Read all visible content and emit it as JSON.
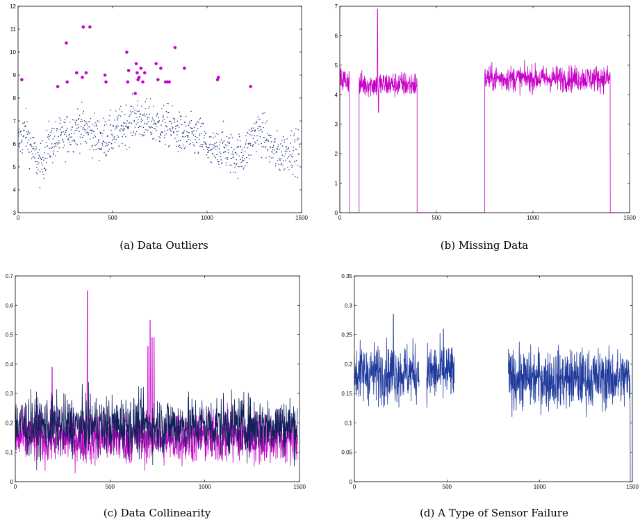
{
  "colors": {
    "magenta": "#c800c8",
    "navy": "#1a2a80",
    "dark_navy": "#12205a",
    "blue": "#1f3a9c"
  },
  "chart_data": [
    {
      "type": "scatter",
      "caption": "(a)  Data Outliers",
      "xlim": [
        0,
        1500
      ],
      "ylim": [
        3,
        12
      ],
      "xticks": [
        0,
        500,
        1000,
        1500
      ],
      "yticks": [
        3,
        4,
        5,
        6,
        7,
        8,
        9,
        10,
        11,
        12
      ],
      "xtick_labels": [
        "0",
        "500",
        "1000",
        "1500"
      ],
      "ytick_labels": [
        "3",
        "4",
        "5",
        "6",
        "7",
        "8",
        "9",
        "10",
        "11",
        "12"
      ],
      "normal_trend": {
        "x": [
          0,
          40,
          80,
          120,
          160,
          200,
          260,
          320,
          380,
          440,
          500,
          560,
          620,
          680,
          740,
          800,
          860,
          920,
          980,
          1020,
          1080,
          1140,
          1200,
          1260,
          1300,
          1340,
          1380,
          1440,
          1500
        ],
        "y": [
          6.0,
          6.6,
          5.6,
          5.0,
          6.0,
          6.1,
          6.4,
          6.8,
          6.5,
          6.2,
          6.4,
          6.8,
          7.1,
          7.0,
          6.8,
          6.8,
          6.4,
          6.3,
          6.2,
          5.6,
          5.9,
          5.5,
          5.6,
          6.6,
          6.4,
          5.8,
          5.5,
          5.8,
          5.6
        ]
      },
      "normal_spread": 0.45,
      "outliers": {
        "x": [
          20,
          210,
          255,
          260,
          310,
          340,
          345,
          360,
          380,
          460,
          465,
          575,
          580,
          585,
          620,
          625,
          630,
          635,
          640,
          650,
          660,
          670,
          730,
          740,
          755,
          780,
          790,
          800,
          830,
          880,
          1055,
          1060,
          1230
        ],
        "y": [
          8.8,
          8.5,
          10.4,
          8.7,
          9.1,
          8.9,
          11.1,
          9.1,
          11.1,
          9.0,
          8.7,
          10.0,
          8.7,
          9.2,
          8.2,
          9.5,
          9.1,
          8.8,
          8.9,
          9.3,
          8.7,
          9.1,
          9.5,
          8.8,
          9.3,
          8.7,
          8.7,
          8.7,
          10.2,
          9.3,
          8.8,
          8.9,
          8.5
        ]
      }
    },
    {
      "type": "line",
      "caption": "(b)  Missing Data",
      "xlim": [
        0,
        1500
      ],
      "ylim": [
        0,
        7
      ],
      "xticks": [
        0,
        500,
        1000,
        1500
      ],
      "yticks": [
        0,
        1,
        2,
        3,
        4,
        5,
        6,
        7
      ],
      "xtick_labels": [
        "0",
        "500",
        "1000",
        "1500"
      ],
      "ytick_labels": [
        "0",
        "1",
        "2",
        "3",
        "4",
        "5",
        "6",
        "7"
      ],
      "segments": [
        {
          "x": [
            0,
            50
          ],
          "mean": 4.5
        },
        {
          "x": [
            100,
            400
          ],
          "mean": 4.35
        },
        {
          "x": [
            750,
            1400
          ],
          "mean": 4.55
        }
      ],
      "noise": 0.22,
      "spikes": [
        {
          "x": 195,
          "y": 6.9
        },
        {
          "x": 200,
          "y": 3.4
        }
      ],
      "missing_value": 0
    },
    {
      "type": "line",
      "caption": "(c)  Data Collinearity",
      "xlim": [
        0,
        1500
      ],
      "ylim": [
        0,
        0.7
      ],
      "xticks": [
        0,
        500,
        1000,
        1500
      ],
      "yticks": [
        0,
        0.1,
        0.2,
        0.3,
        0.4,
        0.5,
        0.6,
        0.7
      ],
      "xtick_labels": [
        "0",
        "500",
        "1000",
        "1500"
      ],
      "ytick_labels": [
        "0",
        "0.1",
        "0.2",
        "0.3",
        "0.4",
        "0.5",
        "0.6",
        "0.7"
      ],
      "series_style": [
        {
          "color": "magenta",
          "mean": 0.15,
          "noise": 0.045
        },
        {
          "color": "dark_navy",
          "mean": 0.19,
          "noise": 0.05
        }
      ],
      "spikes": [
        {
          "x": 195,
          "y": 0.39
        },
        {
          "x": 380,
          "y": 0.65
        },
        {
          "x": 700,
          "y": 0.46
        },
        {
          "x": 712,
          "y": 0.55
        },
        {
          "x": 722,
          "y": 0.49
        },
        {
          "x": 733,
          "y": 0.49
        }
      ]
    },
    {
      "type": "line",
      "caption": "(d)  A Type of Sensor Failure",
      "xlim": [
        0,
        1500
      ],
      "ylim": [
        0,
        0.35
      ],
      "xticks": [
        0,
        500,
        1000,
        1500
      ],
      "yticks": [
        0,
        0.05,
        0.1,
        0.15,
        0.2,
        0.25,
        0.3,
        0.35
      ],
      "xtick_labels": [
        "0",
        "500",
        "1000",
        "1500"
      ],
      "ytick_labels": [
        "0",
        "0.05",
        "0.1",
        "0.15",
        "0.2",
        "0.25",
        "0.3",
        "0.35"
      ],
      "segments": [
        {
          "x": [
            0,
            350
          ],
          "mean": 0.185
        },
        {
          "x": [
            390,
            540
          ],
          "mean": 0.185
        },
        {
          "x": [
            830,
            1490
          ],
          "mean": 0.175
        }
      ],
      "noise": 0.025,
      "spikes": [
        {
          "x": 210,
          "y": 0.285
        },
        {
          "x": 480,
          "y": 0.26
        },
        {
          "x": 1490,
          "y": 0.0
        }
      ]
    }
  ]
}
